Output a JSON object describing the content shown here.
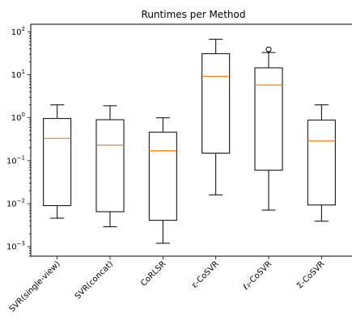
{
  "chart_data": {
    "type": "box",
    "title": "Runtimes per Method",
    "xlabel": "",
    "ylabel": "",
    "yscale": "log",
    "ylim": [
      0.0006,
      150
    ],
    "y_ticks": [
      {
        "value": 0.001,
        "base": "10",
        "exp": "−3"
      },
      {
        "value": 0.01,
        "base": "10",
        "exp": "−2"
      },
      {
        "value": 0.1,
        "base": "10",
        "exp": "−1"
      },
      {
        "value": 1,
        "base": "10",
        "exp": "0"
      },
      {
        "value": 10,
        "base": "10",
        "exp": "1"
      },
      {
        "value": 100,
        "base": "10",
        "exp": "2"
      }
    ],
    "categories": [
      "SVR(single-view)",
      "SVR(concat)",
      "CoRLSR",
      "ε-CoSVR",
      "ℓ₂-CoSVR",
      "Σ-CoSVR"
    ],
    "boxes": [
      {
        "whisker_low": 0.0046,
        "q1": 0.009,
        "median": 0.33,
        "q3": 0.96,
        "whisker_high": 2.0,
        "outliers": []
      },
      {
        "whisker_low": 0.0029,
        "q1": 0.0065,
        "median": 0.23,
        "q3": 0.9,
        "whisker_high": 1.9,
        "outliers": []
      },
      {
        "whisker_low": 0.0012,
        "q1": 0.0041,
        "median": 0.17,
        "q3": 0.46,
        "whisker_high": 1.0,
        "outliers": []
      },
      {
        "whisker_low": 0.016,
        "q1": 0.15,
        "median": 9.2,
        "q3": 31,
        "whisker_high": 67,
        "outliers": []
      },
      {
        "whisker_low": 0.0071,
        "q1": 0.06,
        "median": 5.8,
        "q3": 14.5,
        "whisker_high": 33,
        "outliers": [
          39
        ]
      },
      {
        "whisker_low": 0.0039,
        "q1": 0.0093,
        "median": 0.29,
        "q3": 0.88,
        "whisker_high": 2.0,
        "outliers": []
      }
    ],
    "colors": {
      "box": "#000000",
      "median": "#ff7f0e",
      "axis": "#000000"
    },
    "grid": false,
    "legend": "none"
  }
}
